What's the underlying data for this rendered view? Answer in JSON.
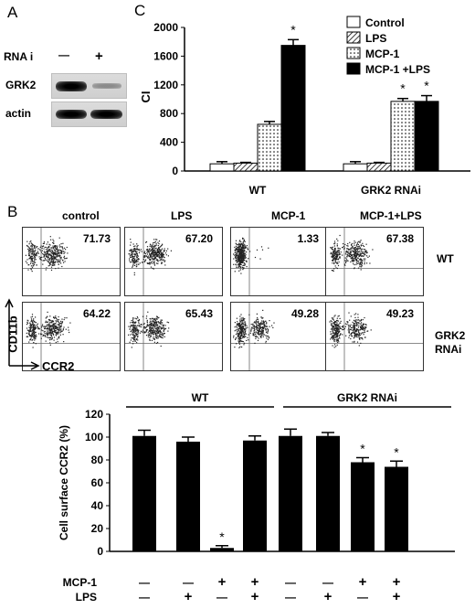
{
  "panel_a": {
    "label": "A",
    "rnai_label": "RNA i",
    "lanes": [
      "—",
      "+"
    ],
    "rows": [
      "GRK2",
      "actin"
    ]
  },
  "panel_b": {
    "label": "B",
    "columns": [
      "control",
      "LPS",
      "MCP-1",
      "MCP-1+LPS"
    ],
    "rows": [
      {
        "label": "WT",
        "values": [
          "71.73",
          "67.20",
          "1.33",
          "67.38"
        ]
      },
      {
        "label": "GRK2 RNAi",
        "values": [
          "64.22",
          "65.43",
          "49.28",
          "49.23"
        ]
      }
    ],
    "y_axis_label": "CD11b",
    "x_axis_label": "CCR2"
  },
  "panel_c": {
    "label": "C"
  },
  "chart_data": [
    {
      "type": "bar",
      "ylabel": "CI",
      "ylim": [
        0,
        2000
      ],
      "yticks": [
        0,
        400,
        800,
        1200,
        1600,
        2000
      ],
      "categories": [
        "WT",
        "GRK2 RNAi"
      ],
      "series": [
        {
          "name": "Control",
          "values": [
            100,
            100
          ],
          "errors": [
            30,
            30
          ],
          "pattern": "open"
        },
        {
          "name": "LPS",
          "values": [
            110,
            110
          ],
          "errors": [
            10,
            10
          ],
          "pattern": "hatched"
        },
        {
          "name": "MCP-1",
          "values": [
            650,
            970
          ],
          "errors": [
            40,
            40
          ],
          "pattern": "dotted"
        },
        {
          "name": "MCP-1 +LPS",
          "values": [
            1750,
            970
          ],
          "errors": [
            80,
            80
          ],
          "pattern": "solid"
        }
      ],
      "significance": [
        {
          "category": "WT",
          "series": "MCP-1 +LPS",
          "mark": "*"
        },
        {
          "category": "GRK2 RNAi",
          "series": "MCP-1",
          "mark": "*"
        },
        {
          "category": "GRK2 RNAi",
          "series": "MCP-1 +LPS",
          "mark": "*"
        }
      ],
      "legend_position": "top-right"
    },
    {
      "type": "bar",
      "ylabel": "Cell surface CCR2 (%)",
      "ylim": [
        0,
        120
      ],
      "yticks": [
        0,
        20,
        40,
        60,
        80,
        100,
        120
      ],
      "group_labels": [
        "WT",
        "GRK2 RNAi"
      ],
      "values": [
        101,
        96,
        3,
        97,
        101,
        101,
        78,
        74
      ],
      "errors": [
        5,
        4,
        2,
        4,
        6,
        3,
        4,
        5
      ],
      "group": [
        0,
        0,
        0,
        0,
        1,
        1,
        1,
        1
      ],
      "significance": [
        "",
        "",
        "*",
        "",
        "",
        "",
        "*",
        "*"
      ],
      "conditions": [
        {
          "name": "MCP-1",
          "values": [
            "—",
            "—",
            "+",
            "+",
            "—",
            "—",
            "+",
            "+"
          ]
        },
        {
          "name": "LPS",
          "values": [
            "—",
            "+",
            "—",
            "+",
            "—",
            "+",
            "—",
            "+"
          ]
        }
      ]
    }
  ]
}
